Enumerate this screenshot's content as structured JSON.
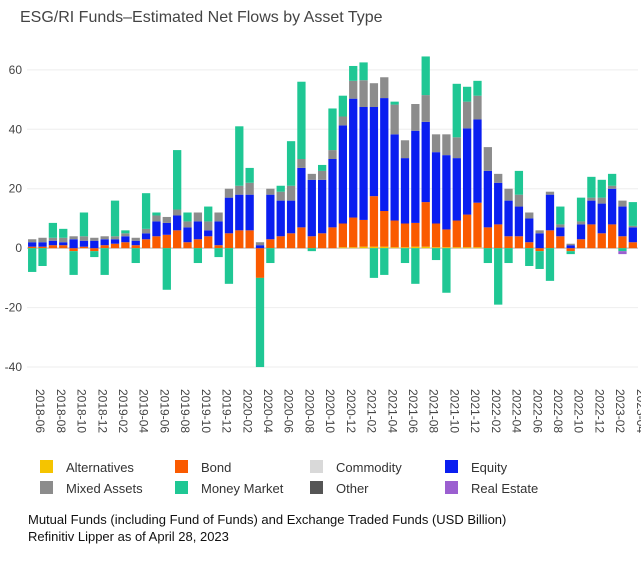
{
  "chart_data": {
    "type": "stacked_bar",
    "title": "ESG/RI Funds–Estimated Net Flows by Asset Type",
    "notes": [
      "Mutual Funds (including Fund of Funds) and Exchange Traded Funds (USD Billion)",
      "Refinitiv Lipper as of April 28, 2023"
    ],
    "categories": [
      "2018-06",
      null,
      "2018-08",
      null,
      "2018-10",
      null,
      "2018-12",
      null,
      "2019-02",
      null,
      "2019-04",
      null,
      "2019-06",
      null,
      "2019-08",
      null,
      "2019-10",
      null,
      "2019-12",
      null,
      "2020-02",
      null,
      "2020-04",
      null,
      "2020-06",
      null,
      "2020-08",
      null,
      "2020-10",
      null,
      "2020-12",
      null,
      "2021-02",
      null,
      "2021-04",
      null,
      "2021-06",
      null,
      "2021-08",
      null,
      "2021-10",
      null,
      "2021-12",
      null,
      "2022-02",
      null,
      "2022-04",
      null,
      "2022-06",
      null,
      "2022-08",
      null,
      "2022-10",
      null,
      "2022-12",
      null,
      "2023-02",
      null,
      "2023-04"
    ],
    "series": [
      {
        "name": "Alternatives",
        "color": "#f5c400",
        "values": [
          0,
          0,
          0,
          0,
          0,
          0,
          0,
          0,
          0,
          0,
          0,
          0,
          0,
          0,
          0,
          0,
          0,
          0,
          0,
          0,
          0,
          0,
          0,
          0,
          0,
          0,
          0,
          0,
          0,
          0,
          0.3,
          0.3,
          0.5,
          0.5,
          0.5,
          0.3,
          0.3,
          0.5,
          0.5,
          0.3,
          0.3,
          0.3,
          0.3,
          0.3,
          0,
          0,
          0,
          0,
          0,
          0,
          0,
          0,
          0,
          0,
          0,
          0,
          0,
          0,
          0
        ]
      },
      {
        "name": "Bond",
        "color": "#fa5a00",
        "values": [
          0.5,
          0.5,
          1,
          1,
          -1,
          0.5,
          -1,
          1,
          1.5,
          2,
          1,
          3,
          4,
          4.5,
          6,
          2,
          3,
          4,
          1,
          5,
          6,
          6,
          -10,
          3,
          4,
          5,
          7,
          4,
          5,
          7,
          8,
          10,
          9,
          17,
          12,
          9,
          8,
          8,
          15,
          8,
          6,
          9,
          11,
          15,
          7,
          8,
          4,
          4,
          2,
          -1,
          6,
          4,
          -1,
          3,
          8,
          5,
          8,
          4,
          2
        ]
      },
      {
        "name": "Commodity",
        "color": "#d9d9d9",
        "values": [
          0,
          0,
          0,
          0,
          0,
          0,
          0,
          0,
          0,
          0,
          0,
          0,
          0,
          0,
          0,
          0,
          0,
          0,
          0,
          0,
          0,
          0,
          0,
          0,
          0,
          0,
          0,
          0,
          0,
          0,
          0,
          0,
          0,
          0,
          0,
          0,
          0,
          0,
          0,
          0,
          0,
          0,
          0,
          0,
          0,
          0,
          0,
          0,
          0,
          0,
          0,
          0,
          0,
          0,
          0,
          0,
          0,
          0,
          0
        ]
      },
      {
        "name": "Equity",
        "color": "#0a1ef0",
        "values": [
          1.5,
          1.5,
          1.5,
          1,
          3,
          2,
          2.5,
          2,
          1.5,
          2,
          1.5,
          2,
          5,
          4,
          5,
          5,
          6,
          2,
          8,
          12,
          12,
          12,
          1,
          15,
          12,
          11,
          20,
          19,
          18,
          23,
          33,
          40,
          38,
          30,
          38,
          29,
          22,
          31,
          27,
          24,
          25,
          21,
          29,
          28,
          19,
          14,
          12,
          10,
          8,
          5,
          12,
          3,
          1,
          5,
          8,
          10,
          12,
          10,
          5
        ]
      },
      {
        "name": "Mixed Assets",
        "color": "#8c8c8c",
        "values": [
          1,
          1.5,
          1,
          1.5,
          1,
          1.5,
          1,
          1,
          1,
          1,
          1,
          1.5,
          2,
          2,
          2,
          2,
          3,
          3,
          3,
          3,
          3,
          4,
          1,
          2,
          3,
          5,
          3,
          2,
          3,
          3,
          3,
          6,
          9,
          8,
          7,
          10,
          6,
          9,
          9,
          6,
          7,
          7,
          9,
          8,
          8,
          3,
          4,
          4,
          2,
          1,
          1,
          1,
          0.5,
          1,
          1,
          2,
          1,
          2,
          0.5
        ]
      },
      {
        "name": "Money Market",
        "color": "#1fc794",
        "values": [
          -8,
          -6,
          5,
          3,
          -8,
          8,
          -2,
          -9,
          12,
          1,
          -5,
          12,
          1,
          -14,
          20,
          3,
          -5,
          5,
          -3,
          -12,
          20,
          5,
          -30,
          -5,
          2,
          15,
          26,
          -1,
          2,
          14,
          7,
          5,
          6,
          -10,
          -9,
          1,
          -5,
          -12,
          13,
          -4,
          -15,
          18,
          5,
          5,
          -5,
          -19,
          -5,
          8,
          -6,
          -6,
          -11,
          6,
          -1,
          8,
          7,
          6,
          4,
          -1,
          8
        ]
      },
      {
        "name": "Other",
        "color": "#555555",
        "values": [
          0,
          0,
          0,
          0,
          0,
          0,
          0,
          0,
          0,
          0,
          0,
          0,
          0,
          0,
          0,
          0,
          0,
          0,
          0,
          0,
          0,
          0,
          0,
          0,
          0,
          0,
          0,
          0,
          0,
          0,
          0,
          0,
          0,
          0,
          0,
          0,
          0,
          0,
          0,
          0,
          0,
          0,
          0,
          0,
          0,
          0,
          0,
          0,
          0,
          0,
          0,
          0,
          0,
          0,
          0,
          0,
          0,
          0,
          0
        ]
      },
      {
        "name": "Real Estate",
        "color": "#9b5fd0",
        "values": [
          0,
          0,
          0,
          0,
          0,
          0,
          0,
          0,
          0,
          0,
          0,
          0,
          0,
          0,
          0,
          0,
          0,
          0,
          0,
          0,
          0,
          0,
          0,
          0,
          0,
          0,
          0,
          0,
          0,
          0,
          0,
          0,
          0,
          0,
          0,
          0,
          0,
          0,
          0,
          0,
          0,
          0,
          0,
          0,
          0,
          0,
          0,
          0,
          0,
          0,
          0,
          0,
          0,
          0,
          0,
          0,
          0,
          -1,
          0
        ]
      }
    ],
    "ylim": [
      -42,
      66
    ],
    "yticks": [
      -40,
      -20,
      0,
      20,
      40,
      60
    ],
    "grid": true
  }
}
